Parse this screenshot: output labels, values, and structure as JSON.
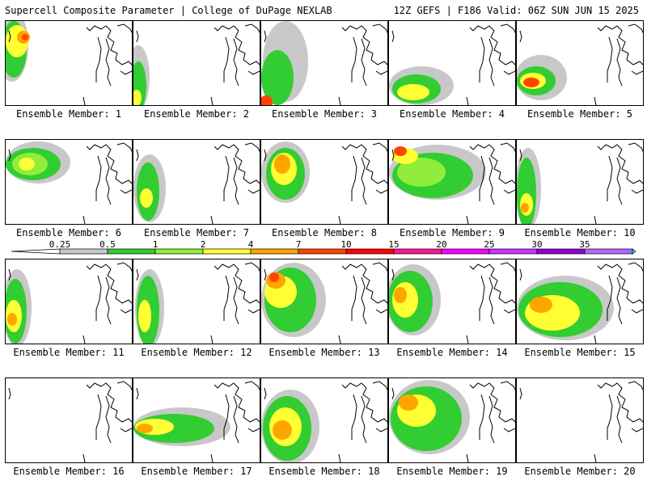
{
  "header": {
    "title": "Supercell Composite Parameter | College of DuPage NEXLAB",
    "run_info": "12Z GEFS | F186 Valid: 06Z SUN JUN 15 2025"
  },
  "panels": [
    {
      "label": "Ensemble Member: 1"
    },
    {
      "label": "Ensemble Member: 2"
    },
    {
      "label": "Ensemble Member: 3"
    },
    {
      "label": "Ensemble Member: 4"
    },
    {
      "label": "Ensemble Member: 5"
    },
    {
      "label": "Ensemble Member: 6"
    },
    {
      "label": "Ensemble Member: 7"
    },
    {
      "label": "Ensemble Member: 8"
    },
    {
      "label": "Ensemble Member: 9"
    },
    {
      "label": "Ensemble Member: 10"
    },
    {
      "label": "Ensemble Member: 11"
    },
    {
      "label": "Ensemble Member: 12"
    },
    {
      "label": "Ensemble Member: 13"
    },
    {
      "label": "Ensemble Member: 14"
    },
    {
      "label": "Ensemble Member: 15"
    },
    {
      "label": "Ensemble Member: 16"
    },
    {
      "label": "Ensemble Member: 17"
    },
    {
      "label": "Ensemble Member: 18"
    },
    {
      "label": "Ensemble Member: 19"
    },
    {
      "label": "Ensemble Member: 20"
    }
  ],
  "legend": {
    "levels": [
      "0.25",
      "0.5",
      "1",
      "2",
      "4",
      "7",
      "10",
      "15",
      "20",
      "25",
      "30",
      "35"
    ],
    "colors": [
      "#c8c8c8",
      "#32cd32",
      "#90ee3a",
      "#ffff33",
      "#ffa500",
      "#ff4500",
      "#ff0000",
      "#ff1493",
      "#ff00ff",
      "#cc33ff",
      "#9400d3",
      "#b266ff",
      "#00ffff"
    ]
  }
}
